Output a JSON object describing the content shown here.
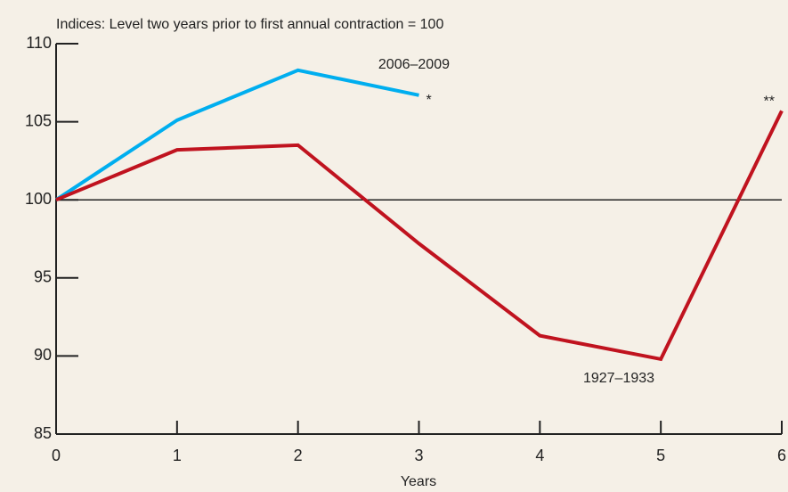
{
  "chart_data": {
    "type": "line",
    "title": "Indices: Level two years prior to first annual contraction = 100",
    "x_label": "Years",
    "x": [
      0,
      1,
      2,
      3,
      4,
      5,
      6
    ],
    "series": [
      {
        "name": "2006–2009",
        "color": "#00aeef",
        "values": [
          100,
          105.1,
          108.3,
          106.7,
          null,
          null,
          null
        ],
        "note": "*"
      },
      {
        "name": "1927–1933",
        "color": "#c0131f",
        "values": [
          100,
          103.2,
          103.5,
          97.2,
          91.3,
          89.8,
          105.7
        ],
        "note": "**"
      }
    ],
    "reference_line": 100,
    "xlim": [
      0,
      6
    ],
    "xticks": [
      0,
      1,
      2,
      3,
      4,
      5,
      6
    ],
    "ylim": [
      85,
      110
    ],
    "yticks": [
      85,
      90,
      95,
      100,
      105,
      110
    ]
  }
}
